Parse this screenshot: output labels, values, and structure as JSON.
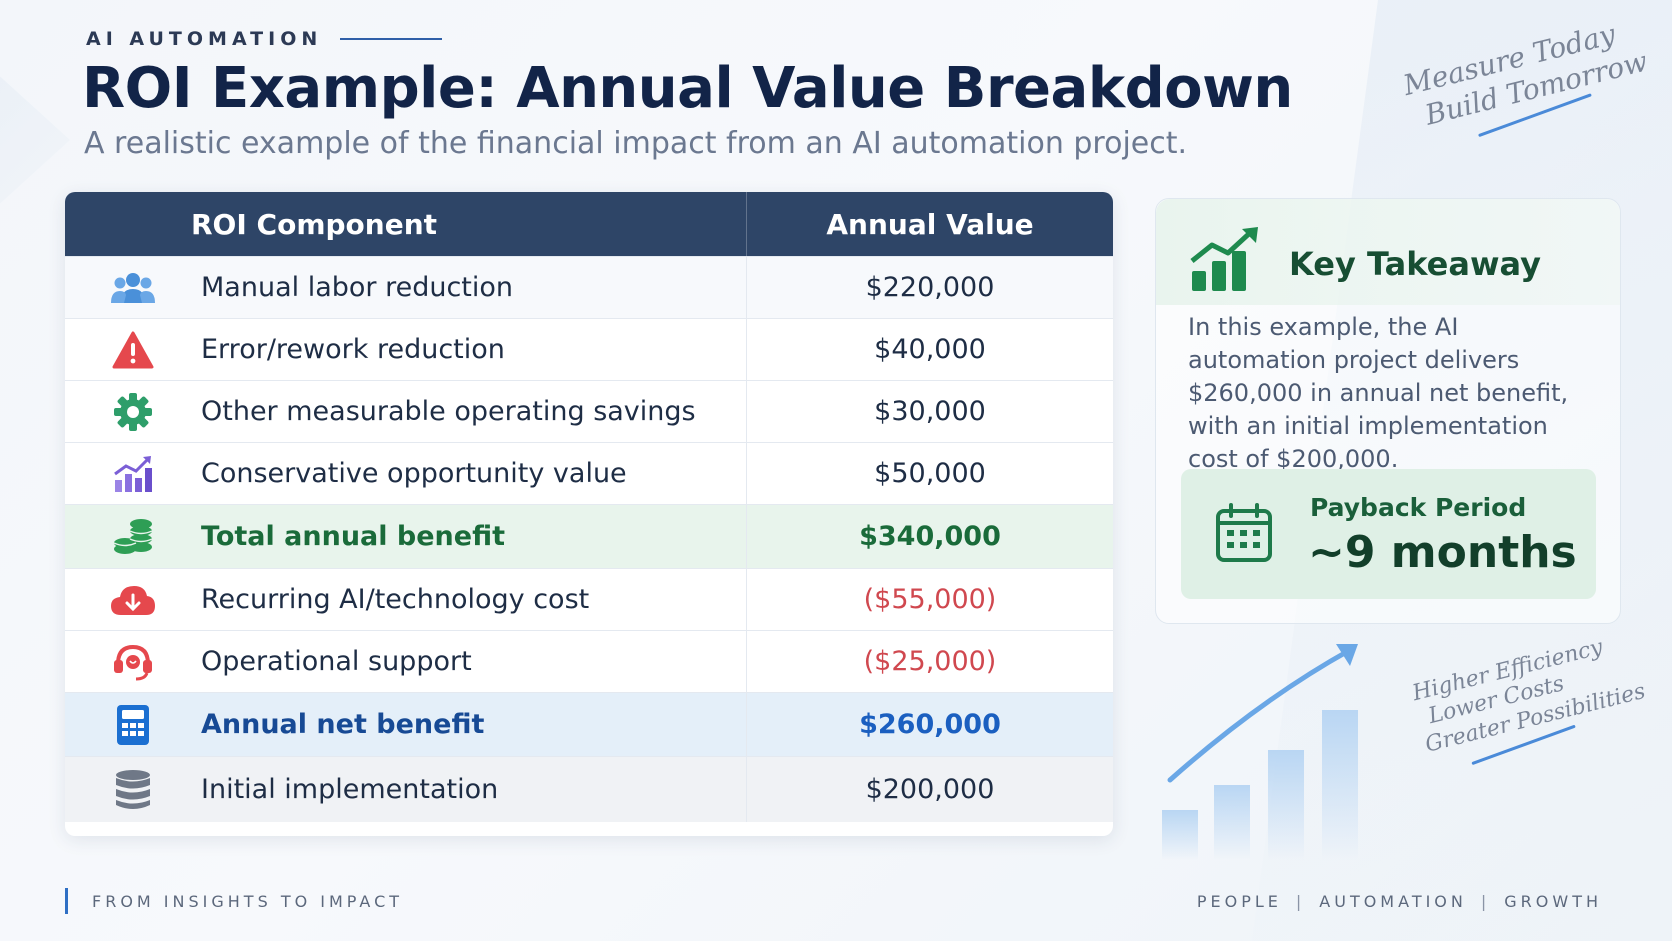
{
  "header": {
    "eyebrow": "AI AUTOMATION",
    "title": "ROI Example: Annual Value Breakdown",
    "subtitle": "A realistic example of the financial impact from an AI automation project."
  },
  "notes": {
    "top_line1": "Measure Today",
    "top_line2": "Build Tomorrow",
    "bottom_line1": "Higher Efficiency",
    "bottom_line2": "Lower Costs",
    "bottom_line3": "Greater Possibilities"
  },
  "table": {
    "col_component": "ROI Component",
    "col_value": "Annual Value",
    "rows": [
      {
        "label": "Manual labor reduction",
        "value": "$220,000",
        "icon": "users-icon",
        "icon_color": "#4a90d9"
      },
      {
        "label": "Error/rework reduction",
        "value": "$40,000",
        "icon": "warning-icon",
        "icon_color": "#e5484d"
      },
      {
        "label": "Other measurable operating savings",
        "value": "$30,000",
        "icon": "gear-icon",
        "icon_color": "#2e9e6a"
      },
      {
        "label": "Conservative opportunity value",
        "value": "$50,000",
        "icon": "growth-chart-icon",
        "icon_color": "#7b5fd6"
      },
      {
        "label": "Total annual benefit",
        "value": "$340,000",
        "icon": "coins-icon",
        "icon_color": "#2e9e55"
      },
      {
        "label": "Recurring AI/technology cost",
        "value": "($55,000)",
        "icon": "cloud-icon",
        "icon_color": "#e5484d"
      },
      {
        "label": "Operational support",
        "value": "($25,000)",
        "icon": "headset-icon",
        "icon_color": "#e5484d"
      },
      {
        "label": "Annual net benefit",
        "value": "$260,000",
        "icon": "calculator-icon",
        "icon_color": "#1b6fd1"
      },
      {
        "label": "Initial implementation",
        "value": "$200,000",
        "icon": "database-icon",
        "icon_color": "#6f7887"
      }
    ]
  },
  "takeaway": {
    "title": "Key Takeaway",
    "body": "In this example, the AI automation project delivers $260,000 in annual net benefit, with an initial implementation cost of $200,000.",
    "payback_label": "Payback Period",
    "payback_value": "~9 months"
  },
  "footer": {
    "left": "FROM INSIGHTS TO IMPACT",
    "right_1": "PEOPLE",
    "right_2": "AUTOMATION",
    "right_3": "GROWTH"
  },
  "colors": {
    "header_bg": "#2e4567",
    "accent_blue": "#1b5fc0",
    "accent_green": "#1a6b3a",
    "negative_red": "#d0484f"
  }
}
